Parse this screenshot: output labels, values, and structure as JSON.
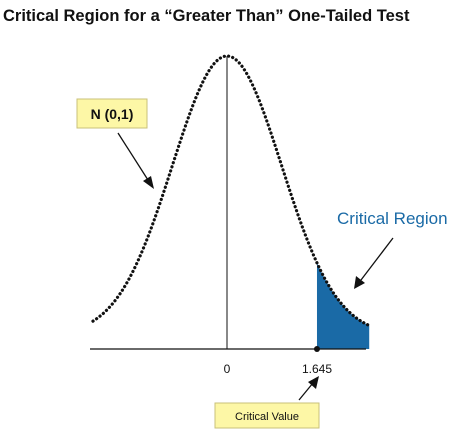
{
  "title": "Critical Region for a “Greater Than” One-Tailed Test",
  "distribution_label": "N (0,1)",
  "region_label": "Critical Region",
  "critical_value_label": "Critical Value",
  "tick_labels": {
    "mean": "0",
    "critical": "1.645"
  },
  "colors": {
    "region_fill": "#1a6aa6",
    "label_box": "#fdf7a6",
    "label_box_border": "#c9c07a",
    "region_text": "#1a6aa6"
  },
  "chart_data": {
    "type": "area",
    "distribution": "standard normal",
    "mean": 0,
    "sd": 1,
    "critical_value": 1.645,
    "shaded_tail": "right",
    "x_ticks": [
      0,
      1.645
    ],
    "title": "Critical Region for a “Greater Than” One-Tailed Test"
  }
}
